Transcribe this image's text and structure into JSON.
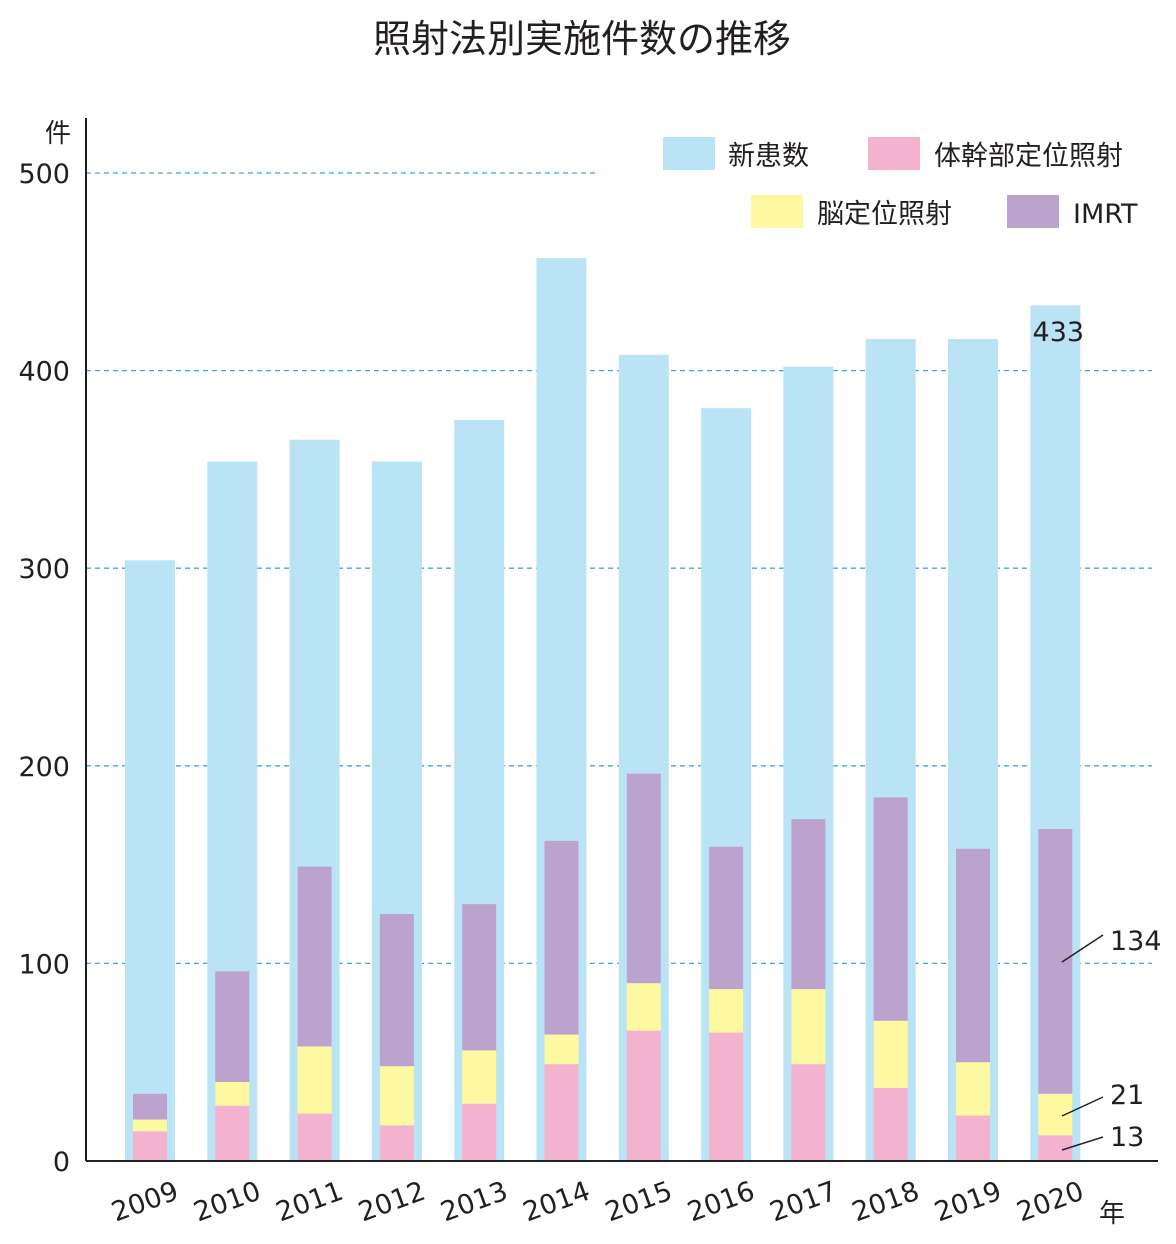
{
  "chart_data": {
    "type": "bar",
    "title": "照射法別実施件数の推移",
    "ylabel": "件",
    "xlabel": "年",
    "ylim": [
      0,
      500
    ],
    "yticks": [
      0,
      100,
      200,
      300,
      400,
      500
    ],
    "grid": true,
    "legend_position": "top-right",
    "categories": [
      "2009",
      "2010",
      "2011",
      "2012",
      "2013",
      "2014",
      "2015",
      "2016",
      "2017",
      "2018",
      "2019",
      "2020"
    ],
    "series": [
      {
        "name": "新患数",
        "color": "#bae3f6",
        "layout": "background",
        "values": [
          304,
          354,
          365,
          354,
          375,
          457,
          408,
          381,
          402,
          416,
          416,
          433
        ]
      },
      {
        "name": "体幹部定位照射",
        "color": "#f3b3ce",
        "layout": "stack",
        "values": [
          15,
          28,
          24,
          18,
          29,
          49,
          66,
          65,
          49,
          37,
          23,
          13
        ]
      },
      {
        "name": "脳定位照射",
        "color": "#fef9a0",
        "layout": "stack",
        "values": [
          6,
          12,
          34,
          30,
          27,
          15,
          24,
          22,
          38,
          34,
          27,
          21
        ]
      },
      {
        "name": "IMRT",
        "color": "#bba3cd",
        "layout": "stack",
        "values": [
          13,
          56,
          91,
          77,
          74,
          98,
          106,
          72,
          86,
          113,
          108,
          134
        ]
      }
    ],
    "annotations": [
      "433",
      "134",
      "21",
      "13"
    ]
  }
}
